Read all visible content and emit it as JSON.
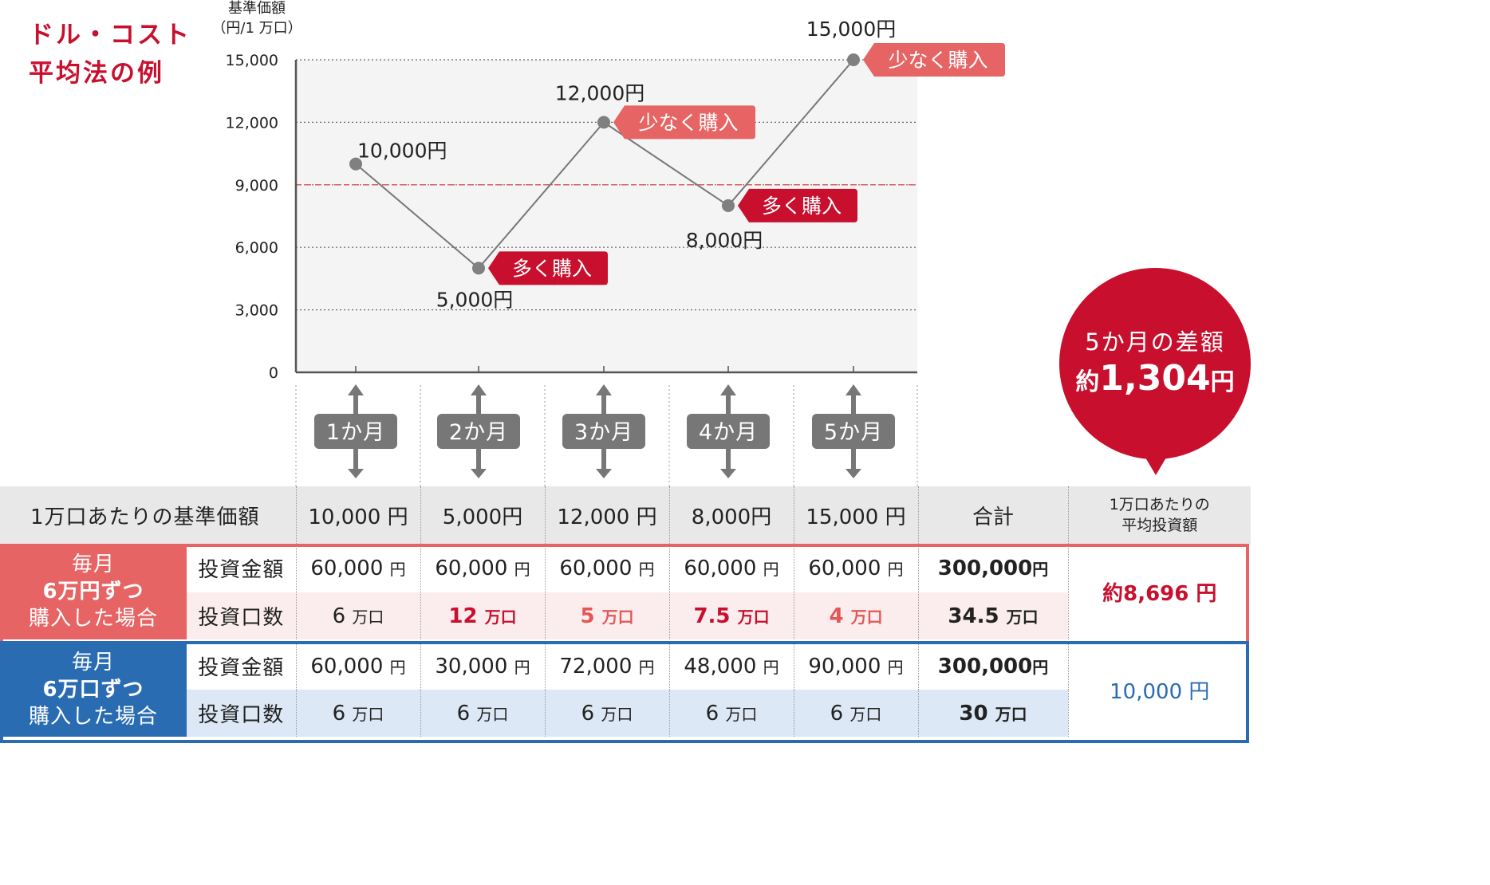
{
  "title_lines": [
    "ドル・コスト",
    "平均法の例"
  ],
  "y_axis_label_lines": [
    "基準価額",
    "（円/1 万口）"
  ],
  "chart_data": {
    "type": "line",
    "x": [
      "1か月",
      "2か月",
      "3か月",
      "4か月",
      "5か月"
    ],
    "y": [
      10000,
      5000,
      12000,
      8000,
      15000
    ],
    "point_labels": [
      "10,000円",
      "5,000円",
      "12,000円",
      "8,000円",
      "15,000円"
    ],
    "ylim": [
      0,
      15000
    ],
    "yticks": [
      0,
      3000,
      6000,
      9000,
      12000,
      15000
    ],
    "ytick_labels": [
      "0",
      "3,000",
      "6,000",
      "9,000",
      "12,000",
      "15,000"
    ],
    "reference_line": 9000,
    "grid": true,
    "annotations": [
      {
        "month": "2か月",
        "text": "多く購入",
        "style": "dark"
      },
      {
        "month": "3か月",
        "text": "少なく購入",
        "style": "light"
      },
      {
        "month": "4か月",
        "text": "多く購入",
        "style": "dark"
      },
      {
        "month": "5か月",
        "text": "少なく購入",
        "style": "light"
      }
    ],
    "colors": {
      "line": "#777777",
      "point": "#808080",
      "reference": "#e05a5a",
      "dark_badge": "#c8102e",
      "light_badge": "#e66464",
      "month_badge": "#777777"
    }
  },
  "diff_bubble": {
    "line1": "5か月の差額",
    "prefix": "約",
    "amount": "1,304",
    "suffix": "円"
  },
  "table": {
    "header": {
      "label": "1万口あたりの基準価額",
      "months": [
        {
          "num": "10,000",
          "unit": "円"
        },
        {
          "num": "5,000",
          "unit": "円"
        },
        {
          "num": "12,000",
          "unit": "円"
        },
        {
          "num": "8,000",
          "unit": "円"
        },
        {
          "num": "15,000",
          "unit": "円"
        }
      ],
      "total": "合計",
      "avg_lines": [
        "1万口あたりの",
        "平均投資額"
      ]
    },
    "fixed_amount": {
      "title_pre": "毎月",
      "title_bold": "6万円ずつ",
      "title_line2": "購入した場合",
      "row1_label": "投資金額",
      "row1": [
        {
          "num": "60,000",
          "unit": "円"
        },
        {
          "num": "60,000",
          "unit": "円"
        },
        {
          "num": "60,000",
          "unit": "円"
        },
        {
          "num": "60,000",
          "unit": "円"
        },
        {
          "num": "60,000",
          "unit": "円"
        }
      ],
      "row1_total": {
        "num": "300,000",
        "unit": "円"
      },
      "row2_label": "投資口数",
      "row2": [
        {
          "num": "6",
          "unit": "万口"
        },
        {
          "num": "12",
          "unit": "万口"
        },
        {
          "num": "5",
          "unit": "万口"
        },
        {
          "num": "7.5",
          "unit": "万口"
        },
        {
          "num": "4",
          "unit": "万口"
        }
      ],
      "row2_total": {
        "num": "34.5",
        "unit": "万口"
      },
      "avg": "約8,696 円"
    },
    "fixed_units": {
      "title_pre": "毎月",
      "title_bold": "6万口ずつ",
      "title_line2": "購入した場合",
      "row1_label": "投資金額",
      "row1": [
        {
          "num": "60,000",
          "unit": "円"
        },
        {
          "num": "30,000",
          "unit": "円"
        },
        {
          "num": "72,000",
          "unit": "円"
        },
        {
          "num": "48,000",
          "unit": "円"
        },
        {
          "num": "90,000",
          "unit": "円"
        }
      ],
      "row1_total": {
        "num": "300,000",
        "unit": "円"
      },
      "row2_label": "投資口数",
      "row2": [
        {
          "num": "6",
          "unit": "万口"
        },
        {
          "num": "6",
          "unit": "万口"
        },
        {
          "num": "6",
          "unit": "万口"
        },
        {
          "num": "6",
          "unit": "万口"
        },
        {
          "num": "6",
          "unit": "万口"
        }
      ],
      "row2_total": {
        "num": "30",
        "unit": "万口"
      },
      "avg": "10,000 円"
    }
  }
}
